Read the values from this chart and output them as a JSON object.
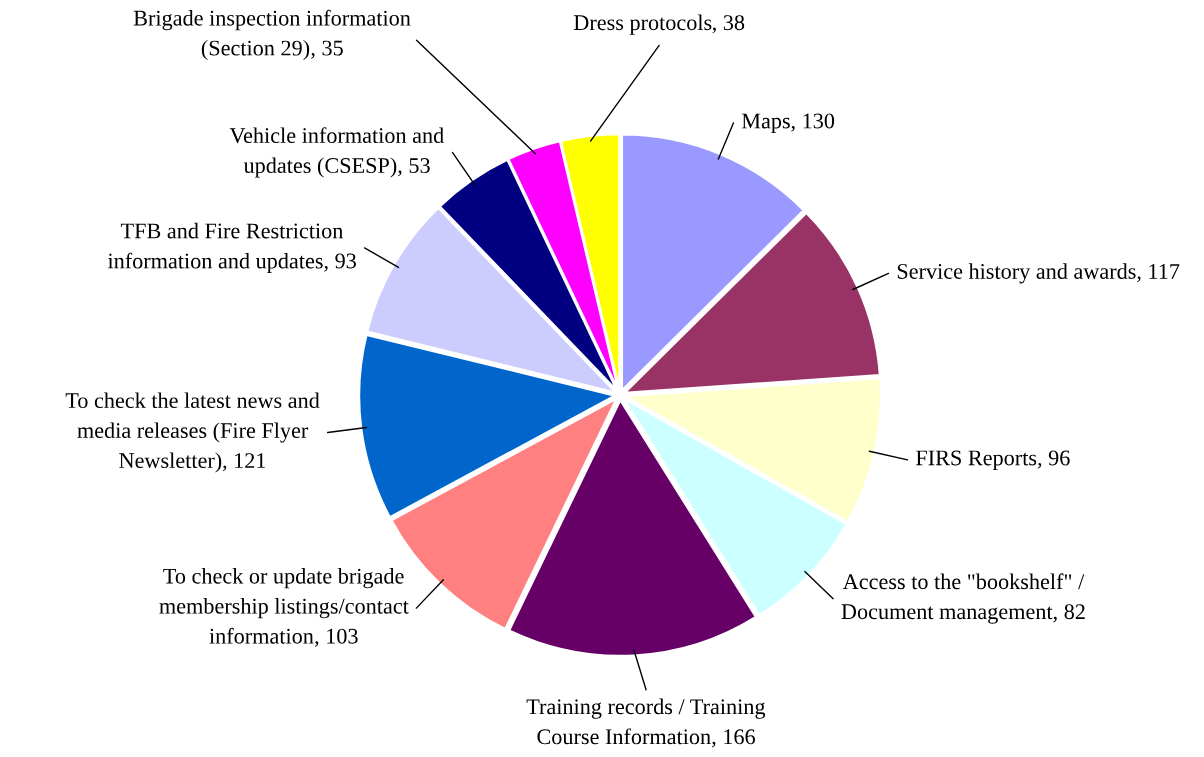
{
  "chart_data": {
    "type": "pie",
    "categories": [
      "Maps",
      "Service history and awards",
      "FIRS Reports",
      "Access to the \"bookshelf\" / Document management",
      "Training records / Training Course Information",
      "To check or update brigade membership listings/contact information",
      "To check the latest news and media releases (Fire Flyer Newsletter)",
      "TFB and Fire Restriction information and updates",
      "Vehicle information and updates (CSESP)",
      "Brigade inspection information (Section 29)",
      "Dress protocols"
    ],
    "values": [
      130,
      117,
      96,
      82,
      166,
      103,
      121,
      93,
      53,
      35,
      38
    ],
    "value_labels": [
      ", 130",
      ", 117",
      ", 96",
      ", 82",
      ", 166",
      ", 103",
      ", 121",
      ", 93",
      ", 53",
      ", 35",
      ", 38"
    ],
    "colors": [
      "#9999ff",
      "#993366",
      "#ffffcc",
      "#ccffff",
      "#660066",
      "#ff8080",
      "#0066cc",
      "#ccccff",
      "#000080",
      "#ff00ff",
      "#ffff00"
    ]
  }
}
